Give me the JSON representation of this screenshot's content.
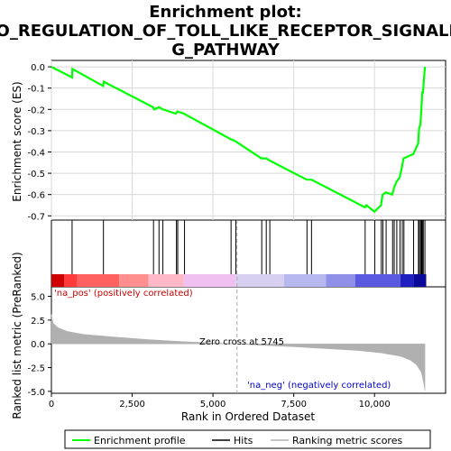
{
  "chart_data": {
    "type": "line",
    "title": "Enrichment plot: GO_REGULATION_OF_TOLL_LIKE_RECEPTOR_SIGNALING_PATHWAY",
    "title_lines": [
      "Enrichment plot:",
      "GO_REGULATION_OF_TOLL_LIKE_RECEPTOR_SIGNALIN",
      "G_PATHWAY"
    ],
    "top_panel": {
      "ylabel": "Enrichment score (ES)",
      "ylim": [
        -0.72,
        0.03
      ],
      "yticks": [
        0.0,
        -0.1,
        -0.2,
        -0.3,
        -0.4,
        -0.5,
        -0.6,
        -0.7
      ],
      "ytick_labels": [
        "0.0",
        "-0.1",
        "-0.2",
        "-0.3",
        "-0.4",
        "-0.5",
        "-0.6",
        "-0.7"
      ],
      "grid": true,
      "series": [
        {
          "name": "Enrichment profile",
          "color": "#00ff00",
          "x": [
            0,
            640,
            650,
            1600,
            1620,
            3150,
            3180,
            3330,
            3450,
            3850,
            3900,
            4100,
            5550,
            5700,
            6500,
            6650,
            6750,
            7900,
            8050,
            9700,
            9750,
            10000,
            10200,
            10250,
            10350,
            10550,
            10600,
            10680,
            10780,
            10850,
            10900,
            11200,
            11350,
            11380,
            11420,
            11450,
            11480,
            11500,
            11560
          ],
          "y": [
            0.0,
            -0.05,
            -0.01,
            -0.09,
            -0.07,
            -0.19,
            -0.2,
            -0.19,
            -0.2,
            -0.22,
            -0.21,
            -0.22,
            -0.34,
            -0.35,
            -0.43,
            -0.43,
            -0.44,
            -0.53,
            -0.53,
            -0.66,
            -0.65,
            -0.68,
            -0.65,
            -0.6,
            -0.59,
            -0.6,
            -0.57,
            -0.54,
            -0.52,
            -0.47,
            -0.43,
            -0.41,
            -0.36,
            -0.29,
            -0.27,
            -0.2,
            -0.12,
            -0.12,
            0.0
          ]
        }
      ]
    },
    "hits": {
      "name": "Hits",
      "x": [
        640,
        1610,
        3160,
        3330,
        3450,
        3870,
        3910,
        4120,
        5560,
        5710,
        6510,
        6650,
        6760,
        7910,
        8050,
        9710,
        10010,
        10210,
        10260,
        10360,
        10560,
        10610,
        10690,
        10790,
        10860,
        10910,
        11210,
        11360,
        11390,
        11430,
        11460,
        11490,
        11510,
        11560
      ]
    },
    "rank_bar": {
      "colors": [
        "#d00000",
        "#ff3a3a",
        "#ff6060",
        "#ff8f8f",
        "#ffb8c8",
        "#f0c0f0",
        "#d8d0f0",
        "#b8b8f0",
        "#9090e8",
        "#5a5ae0",
        "#2020c0",
        "#0a0a9a"
      ],
      "boundaries": [
        0,
        400,
        800,
        2100,
        3000,
        4100,
        5700,
        7200,
        8500,
        9400,
        10800,
        11200,
        11600
      ]
    },
    "bottom_panel": {
      "ylabel": "Ranked list metric (PreRanked)",
      "xlabel": "Rank in Ordered Dataset",
      "ylim": [
        -5.2,
        6.0
      ],
      "yticks": [
        5.0,
        2.5,
        0.0,
        -2.5,
        -5.0
      ],
      "ytick_labels": [
        "5.0",
        "2.5",
        "0.0",
        "-2.5",
        "-5.0"
      ],
      "xlim": [
        0,
        12200
      ],
      "xticks": [
        0,
        2500,
        5000,
        7500,
        10000
      ],
      "xtick_labels": [
        "0",
        "2,500",
        "5,000",
        "7,500",
        "10,000"
      ],
      "series": [
        {
          "name": "Ranking metric scores",
          "color": "#b0b0b0",
          "x": [
            0,
            50,
            200,
            500,
            1000,
            2000,
            3000,
            4000,
            5000,
            5745,
            6500,
            7500,
            8500,
            9500,
            10200,
            10800,
            11100,
            11300,
            11450,
            11530,
            11560
          ],
          "y": [
            3.1,
            2.2,
            1.7,
            1.3,
            1.0,
            0.7,
            0.45,
            0.25,
            0.1,
            0.0,
            -0.15,
            -0.3,
            -0.5,
            -0.7,
            -0.95,
            -1.3,
            -1.7,
            -2.2,
            -3.0,
            -4.2,
            -4.9
          ]
        }
      ],
      "zero_cross_label": "Zero cross at 5745",
      "zero_cross_x": 5745,
      "pos_label": "'na_pos' (positively correlated)",
      "neg_label": "'na_neg' (negatively correlated)"
    },
    "legend": {
      "placement": "bottom",
      "entries": [
        {
          "label": "Enrichment profile",
          "color": "#00ff00"
        },
        {
          "label": "Hits",
          "color": "#000000"
        },
        {
          "label": "Ranking metric scores",
          "color": "#b0b0b0"
        }
      ]
    }
  }
}
